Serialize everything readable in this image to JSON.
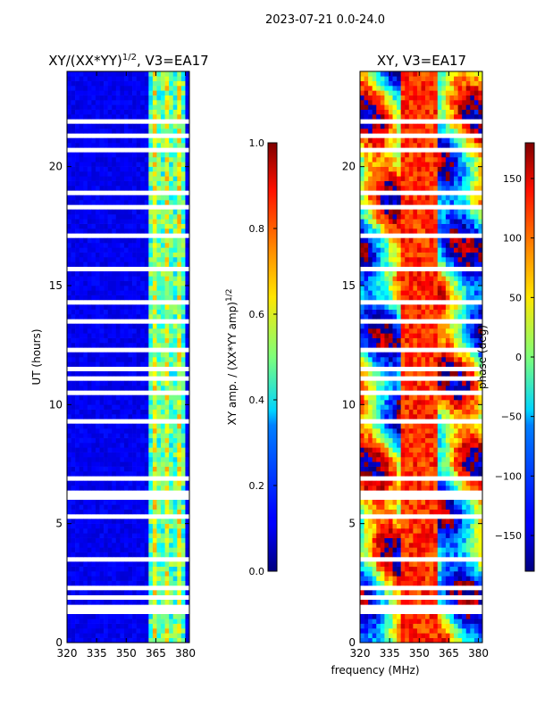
{
  "suptitle": "2023-07-21 0.0-24.0",
  "xlabel": "frequency (MHz)",
  "chart_data": [
    {
      "type": "heatmap",
      "title_main": "XY/(XX*YY)",
      "title_sup": "1/2",
      "title_tail": ", V3=EA17",
      "ylabel": "UT (hours)",
      "xlim": [
        320,
        382
      ],
      "ylim": [
        0,
        24
      ],
      "xticks": [
        "320",
        "335",
        "350",
        "365",
        "380"
      ],
      "xtick_values": [
        320,
        335,
        350,
        365,
        380
      ],
      "yticks": [
        "0",
        "5",
        "10",
        "15",
        "20"
      ],
      "ytick_values": [
        0,
        5,
        10,
        15,
        20
      ],
      "colorbar": {
        "label_main": "XY amp. / (XX*YY amp)",
        "label_sup": "1/2",
        "range": [
          0.0,
          1.0
        ],
        "ticks": [
          "0.0",
          "0.2",
          "0.4",
          "0.6",
          "0.8",
          "1.0"
        ],
        "tick_values": [
          0.0,
          0.2,
          0.4,
          0.6,
          0.8,
          1.0
        ]
      },
      "description_values": {
        "background_level": 0.08,
        "high_band_mhz": [
          362,
          380
        ],
        "high_band_level": 0.45
      }
    },
    {
      "type": "heatmap",
      "title": "XY, V3=EA17",
      "xlim": [
        320,
        382
      ],
      "ylim": [
        0,
        24
      ],
      "xticks": [
        "320",
        "335",
        "350",
        "365",
        "380"
      ],
      "xtick_values": [
        320,
        335,
        350,
        365,
        380
      ],
      "yticks": [
        "0",
        "5",
        "10",
        "15",
        "20"
      ],
      "ytick_values": [
        0,
        5,
        10,
        15,
        20
      ],
      "colorbar": {
        "label": "phase (deg)",
        "range": [
          -180,
          180
        ],
        "ticks": [
          "−150",
          "−100",
          "−50",
          "0",
          "50",
          "100",
          "150"
        ],
        "tick_values": [
          -150,
          -100,
          -50,
          0,
          50,
          100,
          150
        ]
      },
      "description_values": {
        "phase_range_deg": [
          -180,
          180
        ]
      }
    }
  ]
}
